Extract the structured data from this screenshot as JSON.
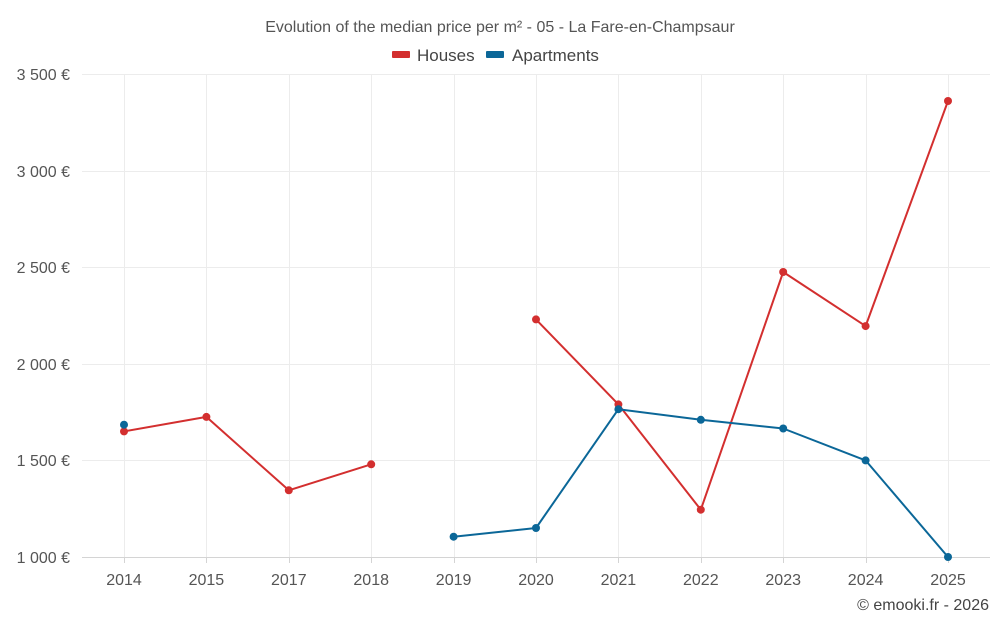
{
  "chart_data": {
    "type": "line",
    "title": "Evolution of the median price per m² - 05 - La Fare-en-Champsaur",
    "categories": [
      "2014",
      "2015",
      "2017",
      "2018",
      "2019",
      "2020",
      "2021",
      "2022",
      "2023",
      "2024",
      "2025"
    ],
    "series": [
      {
        "name": "Houses",
        "color": "#d32f2f",
        "values": [
          1650,
          1725,
          1345,
          1480,
          null,
          2230,
          1790,
          1245,
          2475,
          2195,
          3360
        ]
      },
      {
        "name": "Apartments",
        "color": "#0b6798",
        "values": [
          1685,
          null,
          null,
          null,
          1105,
          1150,
          1765,
          1710,
          1665,
          1500,
          1000
        ]
      }
    ],
    "ylim": [
      1000,
      3500
    ],
    "yticks": [
      1000,
      1500,
      2000,
      2500,
      3000,
      3500
    ],
    "ytick_labels": [
      "1 000 €",
      "1 500 €",
      "2 000 €",
      "2 500 €",
      "3 000 €",
      "3 500 €"
    ],
    "xlabel": "",
    "ylabel": "",
    "grid": true,
    "legend_position": "top-center"
  },
  "credit": "© emooki.fr - 2026"
}
